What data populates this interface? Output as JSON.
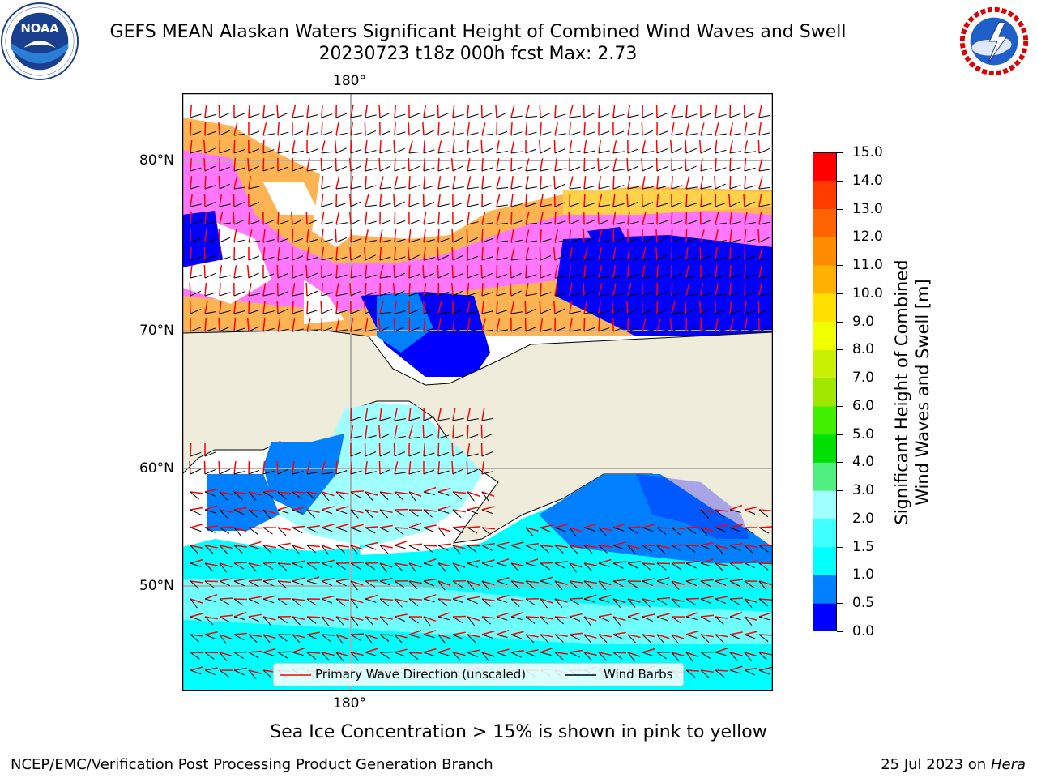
{
  "header": {
    "title_line1": "GEFS MEAN Alaskan Waters Significant Height of Combined Wind Waves and Swell",
    "title_line2": "20230723 t18z 000h fcst   Max: 2.73",
    "left_logo": "NOAA",
    "left_logo_ring_text": "NATIONAL OCEANIC AND ATMOSPHERIC ADMINISTRATION · U.S. DEPARTMENT OF COMMERCE",
    "right_logo_ring_text": "NATIONAL WEATHER SERVICE"
  },
  "map": {
    "lon_label_top": "180°",
    "lon_label_bottom": "180°",
    "lat_labels": [
      "80°N",
      "70°N",
      "60°N",
      "50°N"
    ],
    "colors": {
      "land": "#efecdc",
      "ocean_low": "#0000ff",
      "ocean_mid": "#0080ff",
      "ocean_high": "#00ffff",
      "ocean_top": "#a0ffff",
      "ice_pink": "#ff77ff",
      "ice_orange": "#ffb454",
      "ice_yellow": "#ffd24a",
      "wave_arrow": "#ff0000",
      "wind_barb": "#000000"
    },
    "legend": {
      "wave_label": "Primary Wave Direction (unscaled)",
      "barb_label": "Wind Barbs"
    }
  },
  "colorbar": {
    "label_line1": "Significant Height of Combined",
    "label_line2": "Wind Waves and Swell [m]",
    "ticks": [
      "0.0",
      "0.5",
      "1.0",
      "1.5",
      "2.0",
      "3.0",
      "4.0",
      "5.0",
      "6.0",
      "7.0",
      "8.0",
      "9.0",
      "10.0",
      "11.0",
      "12.0",
      "13.0",
      "14.0",
      "15.0"
    ],
    "colors": [
      "#0000ff",
      "#0080ff",
      "#00ffff",
      "#40ffff",
      "#a0ffff",
      "#50f080",
      "#00e000",
      "#40f000",
      "#a0e800",
      "#c8f000",
      "#f0ff00",
      "#ffe000",
      "#ffb000",
      "#ff8c00",
      "#ff6400",
      "#ff3c00",
      "#ff0000"
    ]
  },
  "footer": {
    "ice_note": "Sea Ice Concentration > 15% is shown in pink to yellow",
    "left": "NCEP/EMC/Verification Post Processing Product Generation Branch",
    "right_date": "25 Jul 2023 on ",
    "right_host": "Hera"
  }
}
